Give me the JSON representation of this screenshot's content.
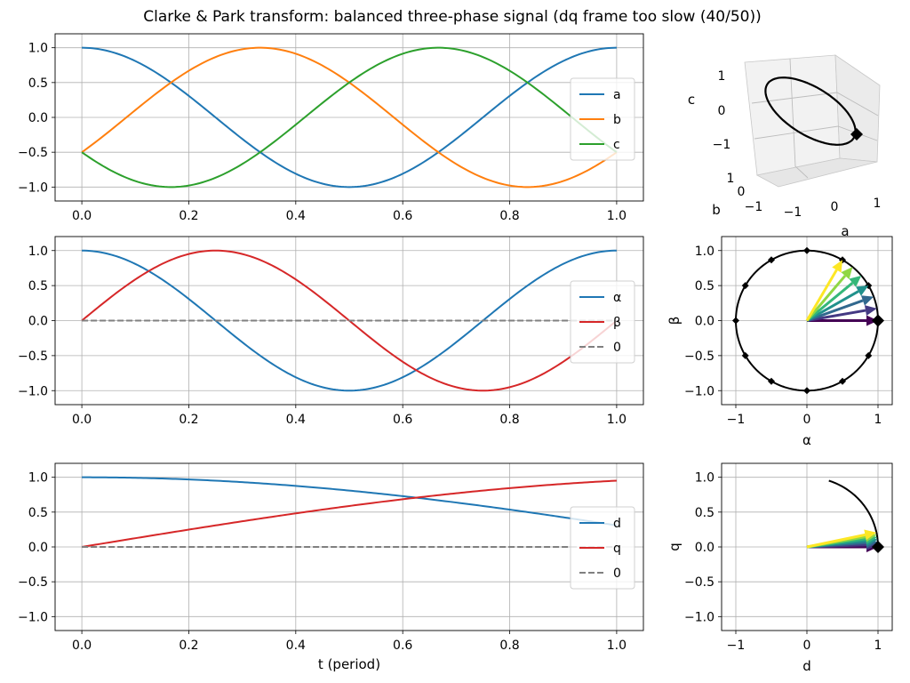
{
  "title": "Clarke & Park transform: balanced three-phase signal (dq frame too slow (40/50))",
  "colors": {
    "a": "#1f77b4",
    "b": "#ff7f0e",
    "c": "#2ca02c",
    "alpha": "#1f77b4",
    "beta": "#d62728",
    "d": "#1f77b4",
    "q": "#d62728",
    "zero": "#808080",
    "grid": "#b0b0b0",
    "marker": "#000000"
  },
  "chart_data": [
    {
      "id": "abc-time",
      "type": "line",
      "title": "",
      "xlabel": "",
      "ylabel": "",
      "xlim": [
        -0.05,
        1.05
      ],
      "ylim": [
        -1.2,
        1.2
      ],
      "xticks": [
        "0.0",
        "0.2",
        "0.4",
        "0.6",
        "0.8",
        "1.0"
      ],
      "yticks": [
        "-1.0",
        "-0.5",
        "0.0",
        "0.5",
        "1.0"
      ],
      "grid": true,
      "legend": "right",
      "x": [
        0.0,
        0.0833,
        0.1667,
        0.25,
        0.3333,
        0.4167,
        0.5,
        0.5833,
        0.6667,
        0.75,
        0.8333,
        0.9167,
        1.0
      ],
      "series": [
        {
          "name": "a",
          "values": [
            1.0,
            0.866,
            0.5,
            0.0,
            -0.5,
            -0.866,
            -1.0,
            -0.866,
            -0.5,
            0.0,
            0.5,
            0.866,
            1.0
          ]
        },
        {
          "name": "b",
          "values": [
            -0.5,
            0.0,
            0.5,
            0.866,
            1.0,
            0.866,
            0.5,
            0.0,
            -0.5,
            -0.866,
            -1.0,
            -0.866,
            -0.5
          ]
        },
        {
          "name": "c",
          "values": [
            -0.5,
            -0.866,
            -1.0,
            -0.866,
            -0.5,
            0.0,
            0.5,
            0.866,
            1.0,
            0.866,
            0.5,
            0.0,
            -0.5
          ]
        }
      ]
    },
    {
      "id": "alpha-beta-time",
      "type": "line",
      "title": "",
      "xlabel": "",
      "ylabel": "",
      "xlim": [
        -0.05,
        1.05
      ],
      "ylim": [
        -1.2,
        1.2
      ],
      "xticks": [
        "0.0",
        "0.2",
        "0.4",
        "0.6",
        "0.8",
        "1.0"
      ],
      "yticks": [
        "-1.0",
        "-0.5",
        "0.0",
        "0.5",
        "1.0"
      ],
      "grid": true,
      "legend": "right",
      "x": [
        0.0,
        0.0833,
        0.1667,
        0.25,
        0.3333,
        0.4167,
        0.5,
        0.5833,
        0.6667,
        0.75,
        0.8333,
        0.9167,
        1.0
      ],
      "series": [
        {
          "name": "α",
          "values": [
            1.0,
            0.866,
            0.5,
            0.0,
            -0.5,
            -0.866,
            -1.0,
            -0.866,
            -0.5,
            0.0,
            0.5,
            0.866,
            1.0
          ]
        },
        {
          "name": "β",
          "values": [
            0.0,
            0.5,
            0.866,
            1.0,
            0.866,
            0.5,
            0.0,
            -0.5,
            -0.866,
            -1.0,
            -0.866,
            -0.5,
            0.0
          ]
        },
        {
          "name": "0",
          "dashed": true,
          "values": [
            0,
            0,
            0,
            0,
            0,
            0,
            0,
            0,
            0,
            0,
            0,
            0,
            0
          ]
        }
      ]
    },
    {
      "id": "dq-time",
      "type": "line",
      "title": "",
      "xlabel": "t (period)",
      "ylabel": "",
      "xlim": [
        -0.05,
        1.05
      ],
      "ylim": [
        -1.2,
        1.2
      ],
      "xticks": [
        "0.0",
        "0.2",
        "0.4",
        "0.6",
        "0.8",
        "1.0"
      ],
      "yticks": [
        "-1.0",
        "-0.5",
        "0.0",
        "0.5",
        "1.0"
      ],
      "grid": true,
      "legend": "right",
      "x": [
        0.0,
        0.1,
        0.2,
        0.3,
        0.4,
        0.5,
        0.6,
        0.7,
        0.8,
        0.9,
        1.0
      ],
      "series": [
        {
          "name": "d",
          "values": [
            1.0,
            0.992,
            0.969,
            0.93,
            0.876,
            0.809,
            0.729,
            0.637,
            0.536,
            0.426,
            0.309
          ]
        },
        {
          "name": "q",
          "values": [
            0.0,
            0.125,
            0.249,
            0.368,
            0.482,
            0.588,
            0.685,
            0.771,
            0.844,
            0.905,
            0.951
          ]
        },
        {
          "name": "0",
          "dashed": true,
          "values": [
            0,
            0,
            0,
            0,
            0,
            0,
            0,
            0,
            0,
            0,
            0
          ]
        }
      ]
    },
    {
      "id": "abc-3d",
      "type": "line",
      "title": "",
      "xlabel": "a",
      "ylabel": "b",
      "zlabel": "c",
      "xticks": [
        "-1",
        "0",
        "1"
      ],
      "yticks": [
        "-1",
        "0",
        "1"
      ],
      "zticks": [
        "-1",
        "0",
        "1"
      ],
      "note": "3D trajectory of (a, b, c) over one period with marker at current point"
    },
    {
      "id": "alpha-beta-plane",
      "type": "scatter",
      "title": "",
      "xlabel": "α",
      "ylabel": "β",
      "xlim": [
        -1.2,
        1.2
      ],
      "ylim": [
        -1.2,
        1.2
      ],
      "xticks": [
        "-1",
        "0",
        "1"
      ],
      "yticks": [
        "-1.0",
        "-0.5",
        "0.0",
        "0.5",
        "1.0"
      ],
      "grid": true,
      "points_on_circle_deg": [
        0,
        30,
        60,
        90,
        120,
        150,
        180,
        210,
        240,
        270,
        300,
        330
      ],
      "vector_angles_deg": [
        0,
        10,
        20,
        30,
        40,
        50,
        60
      ],
      "vector_colors": [
        "#440154",
        "#443983",
        "#31688e",
        "#21918c",
        "#35b779",
        "#90d743",
        "#fde725"
      ],
      "current_point": [
        1.0,
        0.0
      ]
    },
    {
      "id": "dq-plane",
      "type": "scatter",
      "title": "",
      "xlabel": "d",
      "ylabel": "q",
      "xlim": [
        -1.2,
        1.2
      ],
      "ylim": [
        -1.2,
        1.2
      ],
      "xticks": [
        "-1",
        "0",
        "1"
      ],
      "yticks": [
        "-1.0",
        "-0.5",
        "0.0",
        "0.5",
        "1.0"
      ],
      "grid": true,
      "arc_end_deg": 72,
      "vector_angles_deg": [
        0,
        2,
        4,
        6,
        8,
        10,
        12
      ],
      "vector_colors": [
        "#440154",
        "#443983",
        "#31688e",
        "#21918c",
        "#35b779",
        "#90d743",
        "#fde725"
      ],
      "current_point": [
        1.0,
        0.0
      ]
    }
  ]
}
